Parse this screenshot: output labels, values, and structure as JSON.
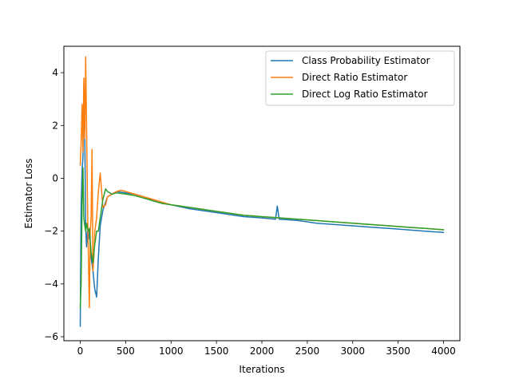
{
  "chart_data": {
    "type": "line",
    "xlabel": "Iterations",
    "ylabel": "Estimator Loss",
    "xlim": [
      -180,
      4180
    ],
    "ylim": [
      -6.15,
      5.0
    ],
    "xticks": [
      0,
      500,
      1000,
      1500,
      2000,
      2500,
      3000,
      3500,
      4000
    ],
    "yticks": [
      -6,
      -4,
      -2,
      0,
      2,
      4
    ],
    "grid": false,
    "legend_position": "top-right",
    "series": [
      {
        "name": "Class Probability Estimator",
        "color": "#1f77b4",
        "x": [
          0,
          10,
          20,
          30,
          40,
          50,
          60,
          70,
          80,
          90,
          100,
          120,
          140,
          160,
          180,
          200,
          220,
          250,
          300,
          350,
          400,
          500,
          600,
          700,
          800,
          900,
          1000,
          1200,
          1400,
          1600,
          1800,
          2000,
          2150,
          2170,
          2190,
          2200,
          2400,
          2600,
          2800,
          3000,
          3200,
          3400,
          3600,
          3800,
          4000
        ],
        "values": [
          -5.6,
          -1.0,
          0.3,
          0.8,
          3.5,
          1.5,
          -1.8,
          -2.6,
          -2.0,
          -2.3,
          -2.0,
          -3.0,
          -3.5,
          -4.2,
          -4.5,
          -3.0,
          -1.8,
          -1.2,
          -0.7,
          -0.6,
          -0.5,
          -0.55,
          -0.6,
          -0.7,
          -0.85,
          -0.95,
          -1.0,
          -1.15,
          -1.25,
          -1.35,
          -1.45,
          -1.5,
          -1.55,
          -1.05,
          -1.55,
          -1.55,
          -1.6,
          -1.7,
          -1.75,
          -1.8,
          -1.85,
          -1.9,
          -1.95,
          -2.0,
          -2.05
        ]
      },
      {
        "name": "Direct Ratio Estimator",
        "color": "#ff7f0e",
        "x": [
          0,
          10,
          20,
          30,
          40,
          50,
          60,
          70,
          80,
          90,
          100,
          110,
          120,
          130,
          140,
          150,
          160,
          180,
          200,
          220,
          250,
          280,
          300,
          350,
          400,
          450,
          500,
          600,
          700,
          800,
          900,
          1000,
          1200,
          1400,
          1600,
          1800,
          2000,
          2200,
          2400,
          2600,
          2800,
          3000,
          3200,
          3400,
          3600,
          3800,
          4000
        ],
        "values": [
          0.5,
          1.3,
          2.8,
          1.0,
          3.8,
          1.5,
          4.6,
          2.0,
          -1.0,
          -3.0,
          -4.9,
          -2.0,
          -1.5,
          1.1,
          -3.5,
          -3.0,
          -2.0,
          -1.5,
          -0.5,
          0.2,
          -1.1,
          -1.0,
          -0.7,
          -0.6,
          -0.5,
          -0.45,
          -0.5,
          -0.6,
          -0.7,
          -0.8,
          -0.9,
          -1.0,
          -1.1,
          -1.2,
          -1.3,
          -1.4,
          -1.45,
          -1.5,
          -1.55,
          -1.6,
          -1.65,
          -1.7,
          -1.75,
          -1.8,
          -1.85,
          -1.9,
          -1.95
        ]
      },
      {
        "name": "Direct Log Ratio Estimator",
        "color": "#2ca02c",
        "x": [
          0,
          10,
          20,
          30,
          40,
          50,
          60,
          70,
          80,
          90,
          100,
          120,
          140,
          160,
          180,
          200,
          220,
          250,
          280,
          300,
          350,
          400,
          500,
          600,
          700,
          800,
          900,
          1000,
          1200,
          1400,
          1600,
          1800,
          2000,
          2200,
          2400,
          2600,
          2800,
          3000,
          3200,
          3400,
          3600,
          3800,
          4000
        ],
        "values": [
          -4.9,
          -4.0,
          -1.0,
          0.4,
          -1.5,
          -1.8,
          -2.0,
          -1.7,
          -1.9,
          -2.0,
          -1.9,
          -2.8,
          -3.2,
          -2.5,
          -2.0,
          -2.0,
          -1.5,
          -0.8,
          -0.4,
          -0.5,
          -0.6,
          -0.55,
          -0.6,
          -0.65,
          -0.75,
          -0.85,
          -0.95,
          -1.0,
          -1.1,
          -1.2,
          -1.3,
          -1.4,
          -1.45,
          -1.5,
          -1.55,
          -1.6,
          -1.65,
          -1.7,
          -1.75,
          -1.8,
          -1.85,
          -1.9,
          -1.95
        ]
      }
    ]
  }
}
